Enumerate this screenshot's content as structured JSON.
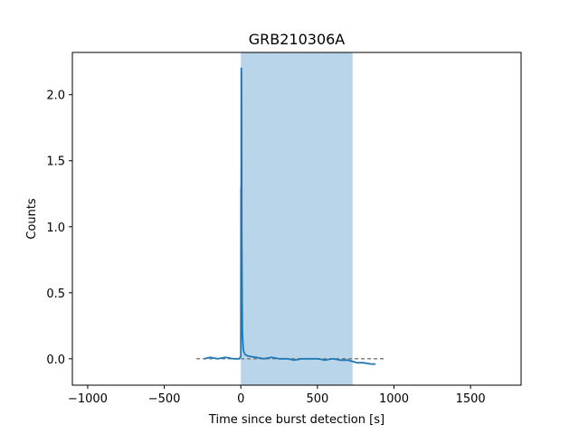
{
  "chart_data": {
    "type": "line",
    "title": "GRB210306A",
    "xlabel": "Time since burst detection [s]",
    "ylabel": "Counts",
    "xlim": [
      -1100,
      1830
    ],
    "ylim": [
      -0.2,
      2.32
    ],
    "xticks": [
      -1000,
      -500,
      0,
      500,
      1000,
      1500
    ],
    "xtick_labels": [
      "−1000",
      "−500",
      "0",
      "500",
      "1000",
      "1500"
    ],
    "yticks": [
      0.0,
      0.5,
      1.0,
      1.5,
      2.0
    ],
    "ytick_labels": [
      "0.0",
      "0.5",
      "1.0",
      "1.5",
      "2.0"
    ],
    "grid": false,
    "shaded_interval": {
      "x": [
        0,
        730
      ],
      "color": "#b9d5ea"
    },
    "baseline": {
      "y": 0.0,
      "x": [
        -290,
        950
      ],
      "style": "dashed",
      "color": "#808080"
    },
    "series": [
      {
        "color": "#1f77b4",
        "x": [
          -240,
          -200,
          -150,
          -100,
          -50,
          -10,
          0,
          1,
          2,
          3,
          4,
          5,
          6,
          8,
          10,
          15,
          20,
          30,
          50,
          100,
          150,
          200,
          250,
          300,
          350,
          400,
          450,
          500,
          550,
          600,
          650,
          700,
          730,
          760,
          800,
          850,
          880
        ],
        "y": [
          0.0,
          0.01,
          0.0,
          0.01,
          0.0,
          0.0,
          0.02,
          1.3,
          0.9,
          2.2,
          2.15,
          1.6,
          1.0,
          0.5,
          0.2,
          0.08,
          0.05,
          0.03,
          0.02,
          0.01,
          0.0,
          0.01,
          0.0,
          0.0,
          -0.01,
          0.0,
          0.0,
          0.0,
          -0.01,
          0.0,
          -0.01,
          -0.01,
          -0.02,
          -0.03,
          -0.03,
          -0.04,
          -0.04
        ]
      }
    ]
  }
}
